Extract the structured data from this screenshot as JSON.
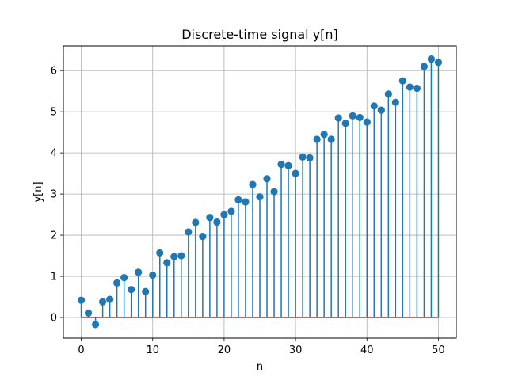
{
  "chart_data": {
    "type": "stem",
    "title": "Discrete-time signal y[n]",
    "xlabel": "n",
    "ylabel": "y[n]",
    "xlim": [
      -2.5,
      52.5
    ],
    "ylim": [
      -0.5,
      6.6
    ],
    "xticks": [
      0,
      10,
      20,
      30,
      40,
      50
    ],
    "yticks": [
      0,
      1,
      2,
      3,
      4,
      5,
      6
    ],
    "grid": true,
    "baseline": 0,
    "colors": {
      "stem": "#1f77b4",
      "marker": "#1f77b4",
      "baseline": "#d62728",
      "grid": "#b0b0b0"
    },
    "x": [
      0,
      1,
      2,
      3,
      4,
      5,
      6,
      7,
      8,
      9,
      10,
      11,
      12,
      13,
      14,
      15,
      16,
      17,
      18,
      19,
      20,
      21,
      22,
      23,
      24,
      25,
      26,
      27,
      28,
      29,
      30,
      31,
      32,
      33,
      34,
      35,
      36,
      37,
      38,
      39,
      40,
      41,
      42,
      43,
      44,
      45,
      46,
      47,
      48,
      49,
      50
    ],
    "values": [
      0.42,
      0.11,
      -0.17,
      0.38,
      0.44,
      0.84,
      0.97,
      0.68,
      1.1,
      0.63,
      1.03,
      1.57,
      1.33,
      1.48,
      1.5,
      2.08,
      2.31,
      1.97,
      2.43,
      2.32,
      2.5,
      2.58,
      2.86,
      2.81,
      3.23,
      2.93,
      3.37,
      3.06,
      3.72,
      3.69,
      3.5,
      3.9,
      3.88,
      4.33,
      4.45,
      4.33,
      4.85,
      4.72,
      4.9,
      4.86,
      4.75,
      5.14,
      5.04,
      5.43,
      5.23,
      5.75,
      5.6,
      5.57,
      6.1,
      6.28,
      6.2
    ]
  }
}
